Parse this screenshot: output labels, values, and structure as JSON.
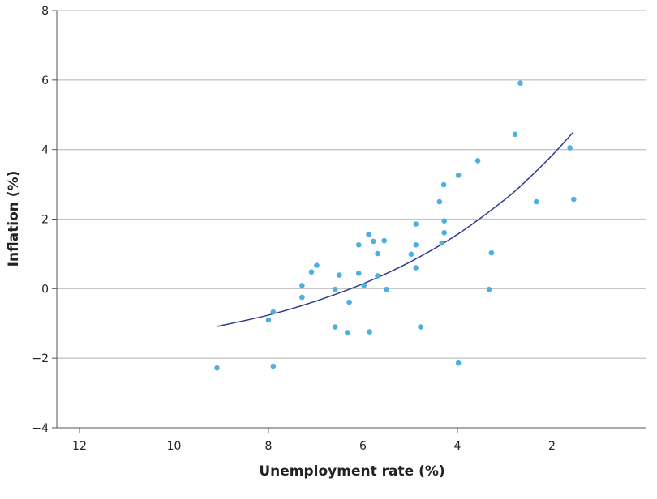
{
  "chart_data": {
    "type": "scatter",
    "title": "",
    "xlabel": "Unemployment rate (%)",
    "ylabel": "Inflation (%)",
    "xlim": [
      12.5,
      0
    ],
    "x_reversed": true,
    "ylim": [
      -4,
      8
    ],
    "xticks": [
      "12",
      "10",
      "8",
      "6",
      "4",
      "2"
    ],
    "xtick_values": [
      12,
      10,
      8,
      6,
      4,
      2
    ],
    "yticks": [
      "8",
      "6",
      "4",
      "2",
      "0",
      "−2",
      "−4"
    ],
    "ytick_values": [
      8,
      6,
      4,
      2,
      0,
      -2,
      -4
    ],
    "grid": "horizontal",
    "colors": {
      "points": "#4fb0e0",
      "trend": "#2f3b8f",
      "grid": "#c6c6c6",
      "axis": "#555555"
    },
    "points": [
      [
        9.09,
        -2.28
      ],
      [
        8.0,
        -0.9
      ],
      [
        7.9,
        -0.67
      ],
      [
        7.9,
        -2.23
      ],
      [
        7.29,
        0.09
      ],
      [
        7.29,
        -0.25
      ],
      [
        7.09,
        0.48
      ],
      [
        6.98,
        0.67
      ],
      [
        6.59,
        -0.02
      ],
      [
        6.59,
        -1.1
      ],
      [
        6.5,
        0.39
      ],
      [
        6.29,
        -0.39
      ],
      [
        6.33,
        -1.26
      ],
      [
        6.09,
        1.26
      ],
      [
        6.09,
        0.44
      ],
      [
        5.98,
        0.09
      ],
      [
        5.88,
        1.56
      ],
      [
        5.86,
        -1.24
      ],
      [
        5.78,
        1.36
      ],
      [
        5.69,
        1.01
      ],
      [
        5.69,
        0.37
      ],
      [
        5.55,
        1.38
      ],
      [
        5.5,
        -0.02
      ],
      [
        4.98,
        0.99
      ],
      [
        4.88,
        1.86
      ],
      [
        4.88,
        1.26
      ],
      [
        4.88,
        0.6
      ],
      [
        4.78,
        -1.1
      ],
      [
        4.38,
        2.5
      ],
      [
        4.33,
        1.31
      ],
      [
        4.29,
        2.99
      ],
      [
        4.28,
        1.95
      ],
      [
        4.28,
        1.61
      ],
      [
        3.98,
        3.26
      ],
      [
        3.98,
        -2.14
      ],
      [
        3.57,
        3.68
      ],
      [
        3.33,
        -0.02
      ],
      [
        3.28,
        1.03
      ],
      [
        2.78,
        4.44
      ],
      [
        2.67,
        5.91
      ],
      [
        2.33,
        2.5
      ],
      [
        1.62,
        4.05
      ],
      [
        1.54,
        2.57
      ]
    ],
    "trend": [
      [
        9.1,
        -1.09
      ],
      [
        8,
        -0.76
      ],
      [
        7,
        -0.36
      ],
      [
        6,
        0.14
      ],
      [
        5,
        0.77
      ],
      [
        4,
        1.56
      ],
      [
        3,
        2.56
      ],
      [
        2.5,
        3.16
      ],
      [
        2,
        3.83
      ],
      [
        1.55,
        4.5
      ]
    ]
  }
}
